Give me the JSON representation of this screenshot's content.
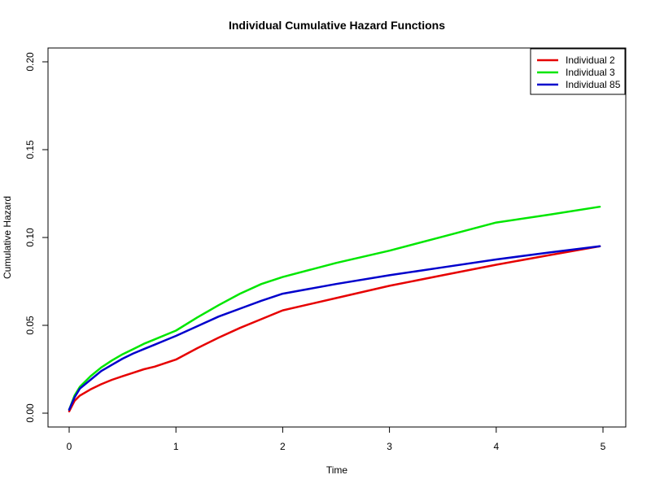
{
  "chart_data": {
    "type": "line",
    "title": "Individual Cumulative Hazard Functions",
    "xlabel": "Time",
    "ylabel": "Cumulative Hazard",
    "xlim": [
      0,
      5
    ],
    "ylim": [
      0,
      0.2
    ],
    "xticks": [
      0,
      1,
      2,
      3,
      4,
      5
    ],
    "xtick_labels": [
      "0",
      "1",
      "2",
      "3",
      "4",
      "5"
    ],
    "yticks": [
      0,
      0.05,
      0.1,
      0.15,
      0.2
    ],
    "ytick_labels": [
      "0.00",
      "0.05",
      "0.10",
      "0.15",
      "0.20"
    ],
    "grid": false,
    "legend_position": "top-right",
    "series": [
      {
        "name": "Individual 2",
        "color": "#e60000",
        "x": [
          0,
          0.05,
          0.1,
          0.2,
          0.3,
          0.4,
          0.5,
          0.6,
          0.7,
          0.8,
          0.9,
          1.0,
          1.2,
          1.4,
          1.6,
          1.8,
          2.0,
          2.5,
          3.0,
          3.5,
          4.0,
          4.5,
          4.97
        ],
        "y": [
          0.001,
          0.007,
          0.01,
          0.0135,
          0.0165,
          0.019,
          0.021,
          0.023,
          0.025,
          0.0265,
          0.0285,
          0.0305,
          0.037,
          0.043,
          0.0485,
          0.0535,
          0.0585,
          0.0655,
          0.0725,
          0.0785,
          0.0845,
          0.09,
          0.095
        ]
      },
      {
        "name": "Individual 3",
        "color": "#00e600",
        "x": [
          0,
          0.05,
          0.1,
          0.2,
          0.3,
          0.4,
          0.5,
          0.6,
          0.7,
          0.8,
          0.9,
          1.0,
          1.2,
          1.4,
          1.6,
          1.8,
          2.0,
          2.5,
          3.0,
          3.5,
          4.0,
          4.5,
          4.97
        ],
        "y": [
          0.002,
          0.01,
          0.015,
          0.021,
          0.026,
          0.03,
          0.0335,
          0.0365,
          0.0395,
          0.042,
          0.0445,
          0.047,
          0.0545,
          0.0615,
          0.068,
          0.0735,
          0.0775,
          0.0855,
          0.0925,
          0.1005,
          0.1085,
          0.113,
          0.1175
        ]
      },
      {
        "name": "Individual 85",
        "color": "#0000cc",
        "x": [
          0,
          0.05,
          0.1,
          0.2,
          0.3,
          0.4,
          0.5,
          0.6,
          0.7,
          0.8,
          0.9,
          1.0,
          1.2,
          1.4,
          1.6,
          1.8,
          2.0,
          2.5,
          3.0,
          3.5,
          4.0,
          4.5,
          4.97
        ],
        "y": [
          0.002,
          0.009,
          0.014,
          0.019,
          0.024,
          0.0275,
          0.031,
          0.034,
          0.0365,
          0.039,
          0.0415,
          0.044,
          0.0495,
          0.055,
          0.0595,
          0.064,
          0.068,
          0.0735,
          0.0785,
          0.083,
          0.0875,
          0.0915,
          0.095
        ]
      }
    ]
  }
}
